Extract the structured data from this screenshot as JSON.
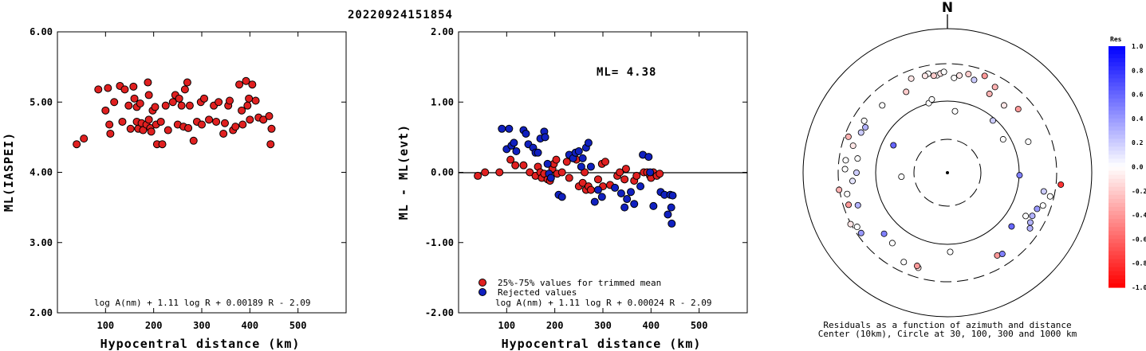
{
  "title": "20220924151854",
  "chart_data": [
    {
      "type": "scatter",
      "id": "left",
      "xlabel": "Hypocentral distance (km)",
      "ylabel": "ML(IASPEI)",
      "xlim": [
        0,
        600
      ],
      "ylim": [
        2.0,
        6.0
      ],
      "xticks": [
        "100",
        "200",
        "300",
        "400",
        "500"
      ],
      "yticks": [
        "2.00",
        "3.00",
        "4.00",
        "5.00",
        "6.00"
      ],
      "formula": "log A(nm) + 1.11 log R + 0.00189 R - 2.09",
      "marker_color": "#e02020",
      "points": [
        [
          40,
          4.4
        ],
        [
          55,
          4.48
        ],
        [
          85,
          5.18
        ],
        [
          100,
          4.88
        ],
        [
          105,
          5.2
        ],
        [
          108,
          4.68
        ],
        [
          110,
          4.55
        ],
        [
          118,
          5.0
        ],
        [
          130,
          5.23
        ],
        [
          135,
          4.72
        ],
        [
          140,
          5.18
        ],
        [
          148,
          4.95
        ],
        [
          152,
          4.62
        ],
        [
          158,
          5.22
        ],
        [
          160,
          5.05
        ],
        [
          165,
          4.93
        ],
        [
          165,
          4.72
        ],
        [
          168,
          4.62
        ],
        [
          172,
          4.98
        ],
        [
          175,
          4.7
        ],
        [
          178,
          4.6
        ],
        [
          185,
          4.68
        ],
        [
          188,
          5.28
        ],
        [
          190,
          5.1
        ],
        [
          190,
          4.75
        ],
        [
          193,
          4.63
        ],
        [
          195,
          4.58
        ],
        [
          198,
          4.88
        ],
        [
          203,
          4.93
        ],
        [
          205,
          4.68
        ],
        [
          207,
          4.4
        ],
        [
          215,
          4.72
        ],
        [
          218,
          4.4
        ],
        [
          225,
          4.95
        ],
        [
          230,
          4.6
        ],
        [
          240,
          5.0
        ],
        [
          245,
          5.1
        ],
        [
          250,
          4.68
        ],
        [
          253,
          5.05
        ],
        [
          258,
          4.95
        ],
        [
          262,
          4.65
        ],
        [
          265,
          5.18
        ],
        [
          270,
          5.28
        ],
        [
          272,
          4.63
        ],
        [
          275,
          4.95
        ],
        [
          283,
          4.45
        ],
        [
          290,
          4.72
        ],
        [
          298,
          5.0
        ],
        [
          300,
          4.68
        ],
        [
          305,
          5.05
        ],
        [
          315,
          4.75
        ],
        [
          325,
          4.95
        ],
        [
          330,
          4.72
        ],
        [
          335,
          5.0
        ],
        [
          345,
          4.55
        ],
        [
          348,
          4.7
        ],
        [
          355,
          4.95
        ],
        [
          358,
          5.02
        ],
        [
          365,
          4.6
        ],
        [
          370,
          4.65
        ],
        [
          378,
          5.25
        ],
        [
          383,
          4.88
        ],
        [
          385,
          4.68
        ],
        [
          392,
          5.3
        ],
        [
          395,
          4.95
        ],
        [
          398,
          5.05
        ],
        [
          400,
          4.75
        ],
        [
          405,
          5.25
        ],
        [
          412,
          5.02
        ],
        [
          418,
          4.78
        ],
        [
          428,
          4.75
        ],
        [
          440,
          4.8
        ],
        [
          443,
          4.4
        ],
        [
          445,
          4.62
        ]
      ]
    },
    {
      "type": "scatter",
      "id": "middle",
      "xlabel": "Hypocentral distance (km)",
      "ylabel": "ML - ML(evt)",
      "xlim": [
        0,
        600
      ],
      "ylim": [
        -2.0,
        2.0
      ],
      "xticks": [
        "100",
        "200",
        "300",
        "400",
        "500"
      ],
      "yticks": [
        "-2.00",
        "-1.00",
        "0.00",
        "1.00",
        "2.00"
      ],
      "ml_label": "ML= 4.38",
      "formula": "log A(nm) + 1.11 log R + 0.00024 R - 2.09",
      "legend": [
        {
          "label": "25%-75% values for trimmed mean",
          "color": "#e02020"
        },
        {
          "label": "Rejected values",
          "color": "#1020c0"
        }
      ],
      "series": [
        {
          "name": "25%-75% values for trimmed mean",
          "color": "#e02020",
          "points": [
            [
              40,
              -0.05
            ],
            [
              55,
              0.0
            ],
            [
              85,
              0.0
            ],
            [
              108,
              0.18
            ],
            [
              118,
              0.1
            ],
            [
              135,
              0.1
            ],
            [
              148,
              0.0
            ],
            [
              160,
              -0.05
            ],
            [
              165,
              0.08
            ],
            [
              170,
              0.0
            ],
            [
              173,
              -0.08
            ],
            [
              178,
              -0.02
            ],
            [
              185,
              -0.1
            ],
            [
              190,
              -0.12
            ],
            [
              195,
              0.05
            ],
            [
              198,
              0.12
            ],
            [
              203,
              0.18
            ],
            [
              205,
              -0.02
            ],
            [
              215,
              0.0
            ],
            [
              225,
              0.15
            ],
            [
              230,
              -0.08
            ],
            [
              245,
              0.18
            ],
            [
              250,
              -0.2
            ],
            [
              258,
              -0.15
            ],
            [
              262,
              0.0
            ],
            [
              265,
              -0.25
            ],
            [
              270,
              -0.2
            ],
            [
              275,
              -0.25
            ],
            [
              290,
              -0.1
            ],
            [
              298,
              0.12
            ],
            [
              300,
              -0.2
            ],
            [
              305,
              0.15
            ],
            [
              315,
              -0.18
            ],
            [
              330,
              -0.05
            ],
            [
              335,
              0.0
            ],
            [
              345,
              -0.1
            ],
            [
              348,
              0.05
            ],
            [
              365,
              -0.12
            ],
            [
              370,
              -0.05
            ],
            [
              385,
              0.0
            ],
            [
              392,
              0.0
            ],
            [
              398,
              -0.05
            ],
            [
              400,
              -0.08
            ],
            [
              405,
              0.0
            ],
            [
              412,
              -0.05
            ],
            [
              418,
              -0.02
            ]
          ]
        },
        {
          "name": "Rejected values",
          "color": "#1020c0",
          "points": [
            [
              90,
              0.62
            ],
            [
              100,
              0.33
            ],
            [
              105,
              0.62
            ],
            [
              110,
              0.38
            ],
            [
              115,
              0.42
            ],
            [
              120,
              0.3
            ],
            [
              135,
              0.6
            ],
            [
              140,
              0.55
            ],
            [
              145,
              0.4
            ],
            [
              155,
              0.35
            ],
            [
              160,
              0.28
            ],
            [
              165,
              0.28
            ],
            [
              170,
              0.48
            ],
            [
              178,
              0.58
            ],
            [
              180,
              0.5
            ],
            [
              185,
              0.12
            ],
            [
              188,
              -0.02
            ],
            [
              192,
              -0.08
            ],
            [
              208,
              -0.32
            ],
            [
              215,
              -0.35
            ],
            [
              230,
              0.25
            ],
            [
              238,
              0.2
            ],
            [
              243,
              0.28
            ],
            [
              250,
              0.3
            ],
            [
              255,
              0.08
            ],
            [
              258,
              0.2
            ],
            [
              265,
              0.35
            ],
            [
              270,
              0.42
            ],
            [
              275,
              0.08
            ],
            [
              283,
              -0.42
            ],
            [
              290,
              -0.25
            ],
            [
              298,
              -0.35
            ],
            [
              325,
              -0.22
            ],
            [
              338,
              -0.3
            ],
            [
              345,
              -0.5
            ],
            [
              350,
              -0.38
            ],
            [
              358,
              -0.28
            ],
            [
              365,
              -0.45
            ],
            [
              378,
              -0.2
            ],
            [
              383,
              0.25
            ],
            [
              395,
              0.22
            ],
            [
              398,
              0.0
            ],
            [
              405,
              -0.48
            ],
            [
              420,
              -0.28
            ],
            [
              428,
              -0.32
            ],
            [
              435,
              -0.6
            ],
            [
              440,
              -0.32
            ],
            [
              442,
              -0.5
            ],
            [
              443,
              -0.73
            ],
            [
              445,
              -0.33
            ]
          ]
        }
      ]
    }
  ],
  "polar": {
    "north_label": "N",
    "caption_line1": "Residuals as a function of azimuth and distance",
    "caption_line2": "Center (10km), Circle at 30, 100, 300 and 1000 km",
    "colorbar_title": "Res",
    "colorbar_ticks": [
      "1.0",
      "0.8",
      "0.6",
      "0.4",
      "0.2",
      "0.0",
      "-0.2",
      "-0.4",
      "-0.6",
      "-0.8",
      "-1.0"
    ],
    "stations": [
      [
        354,
        0.68,
        0.0
      ],
      [
        356,
        0.69,
        -0.1
      ],
      [
        358,
        0.7,
        0.0
      ],
      [
        352,
        0.68,
        -0.2
      ],
      [
        349,
        0.7,
        0.0
      ],
      [
        347,
        0.69,
        -0.1
      ],
      [
        4,
        0.66,
        0.0
      ],
      [
        16,
        0.67,
        0.2
      ],
      [
        12,
        0.7,
        -0.2
      ],
      [
        7,
        0.68,
        -0.1
      ],
      [
        28,
        0.62,
        -0.3
      ],
      [
        21,
        0.72,
        -0.4
      ],
      [
        29,
        0.68,
        -0.3
      ],
      [
        40,
        0.61,
        -0.1
      ],
      [
        48,
        0.66,
        -0.4
      ],
      [
        339,
        0.7,
        -0.1
      ],
      [
        333,
        0.63,
        -0.2
      ],
      [
        345,
        0.5,
        0.0
      ],
      [
        348,
        0.52,
        0.0
      ],
      [
        7,
        0.43,
        0.0
      ],
      [
        316,
        0.65,
        0.0
      ],
      [
        302,
        0.68,
        0.0
      ],
      [
        295,
        0.66,
        0.2
      ],
      [
        299,
        0.65,
        0.3
      ],
      [
        290,
        0.73,
        -0.3
      ],
      [
        286,
        0.68,
        -0.1
      ],
      [
        279,
        0.63,
        0.0
      ],
      [
        277,
        0.71,
        0.0
      ],
      [
        270,
        0.63,
        0.2
      ],
      [
        272,
        0.71,
        0.0
      ],
      [
        265,
        0.66,
        0.1
      ],
      [
        261,
        0.76,
        -0.3
      ],
      [
        258,
        0.71,
        0.0
      ],
      [
        252,
        0.72,
        -0.4
      ],
      [
        250,
        0.66,
        0.3
      ],
      [
        242,
        0.76,
        -0.1
      ],
      [
        239,
        0.73,
        0.0
      ],
      [
        235,
        0.73,
        0.4
      ],
      [
        297,
        0.42,
        0.6
      ],
      [
        265,
        0.32,
        0.0
      ],
      [
        226,
        0.61,
        0.5
      ],
      [
        218,
        0.62,
        0.0
      ],
      [
        206,
        0.69,
        0.0
      ],
      [
        197,
        0.69,
        -0.1
      ],
      [
        178,
        0.55,
        0.0
      ],
      [
        149,
        0.67,
        -0.4
      ],
      [
        146,
        0.68,
        0.5
      ],
      [
        124,
        0.69,
        0.3
      ],
      [
        130,
        0.58,
        0.6
      ],
      [
        119,
        0.62,
        0.0
      ],
      [
        121,
        0.67,
        0.3
      ],
      [
        117,
        0.66,
        0.3
      ],
      [
        112,
        0.67,
        0.4
      ],
      [
        109,
        0.7,
        0.0
      ],
      [
        103,
        0.73,
        0.0
      ],
      [
        101,
        0.68,
        0.2
      ],
      [
        96,
        0.79,
        -0.8
      ],
      [
        92,
        0.5,
        0.5
      ],
      [
        69,
        0.6,
        0.0
      ],
      [
        198,
        0.68,
        -0.4
      ],
      [
        59,
        0.45,
        0.0
      ],
      [
        41,
        0.48,
        0.2
      ]
    ]
  }
}
